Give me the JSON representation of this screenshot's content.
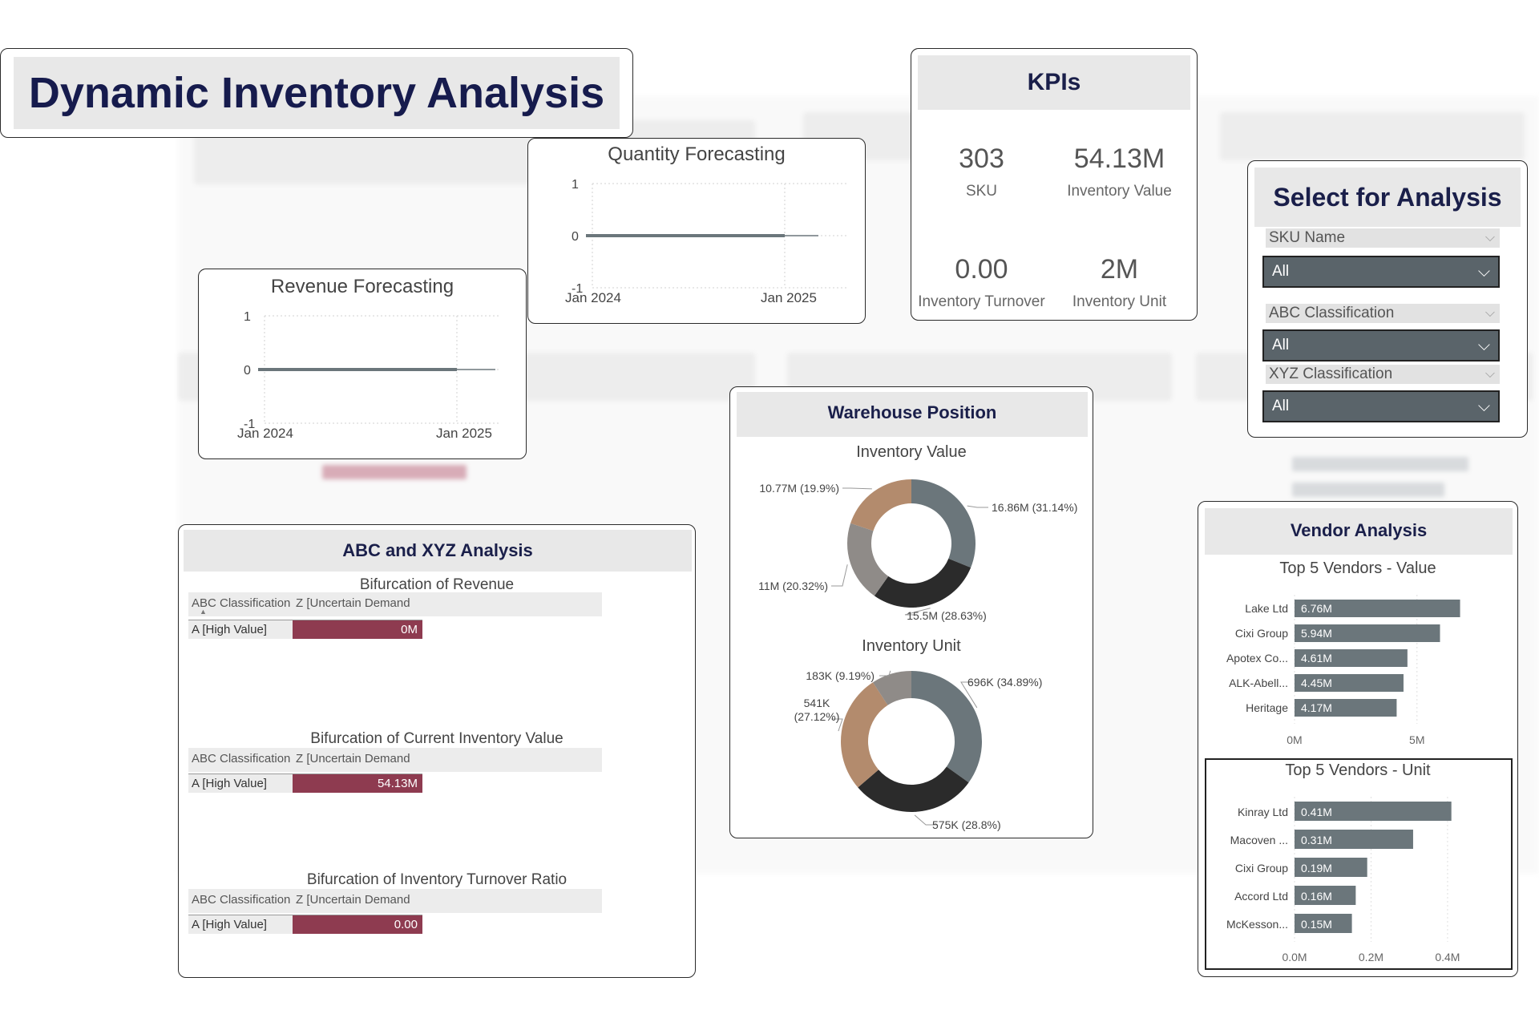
{
  "title": "Dynamic Inventory Analysis",
  "colors": {
    "header_bg": "#e8e8e8",
    "title_text": "#161b4d",
    "slate": "#6b767b",
    "dark": "#2b2b2b",
    "tan": "#b38b6d",
    "gray": "#8f8b88",
    "accent_bar": "#8e3b50",
    "slicer_bg": "#5a646a"
  },
  "kpis": {
    "title": "KPIs",
    "items": [
      {
        "value": "303",
        "label": "SKU"
      },
      {
        "value": "54.13M",
        "label": "Inventory Value"
      },
      {
        "value": "0.00",
        "label": "Inventory Turnover"
      },
      {
        "value": "2M",
        "label": "Inventory Unit"
      }
    ]
  },
  "select": {
    "title": "Select for Analysis",
    "slicers": [
      {
        "label": "SKU Name",
        "value": "All"
      },
      {
        "label": "ABC Classification",
        "value": "All"
      },
      {
        "label": "XYZ Classification",
        "value": "All"
      }
    ]
  },
  "icons": {
    "chevron": "chevron-down-icon"
  },
  "chart_data": [
    {
      "id": "quantity_forecasting",
      "type": "line",
      "title": "Quantity Forecasting",
      "x_ticks": [
        "Jan 2024",
        "Jan 2025"
      ],
      "y_ticks": [
        "1",
        "0",
        "-1"
      ],
      "ylim": [
        -1,
        1
      ],
      "series": [
        {
          "name": "Quantity",
          "values": [
            0,
            0
          ]
        }
      ]
    },
    {
      "id": "revenue_forecasting",
      "type": "line",
      "title": "Revenue Forecasting",
      "x_ticks": [
        "Jan 2024",
        "Jan 2025"
      ],
      "y_ticks": [
        "1",
        "0",
        "-1"
      ],
      "ylim": [
        -1,
        1
      ],
      "series": [
        {
          "name": "Revenue",
          "values": [
            0,
            0
          ]
        }
      ]
    },
    {
      "id": "inventory_value_donut",
      "type": "pie",
      "title": "Inventory Value",
      "slices": [
        {
          "label": "16.86M (31.14%)",
          "value": 31.14,
          "color": "#6b767b"
        },
        {
          "label": "15.5M (28.63%)",
          "value": 28.63,
          "color": "#2b2b2b"
        },
        {
          "label": "11M (20.32%)",
          "value": 20.32,
          "color": "#8f8b88"
        },
        {
          "label": "10.77M (19.9%)",
          "value": 19.9,
          "color": "#b38b6d"
        }
      ]
    },
    {
      "id": "inventory_unit_donut",
      "type": "pie",
      "title": "Inventory Unit",
      "slices": [
        {
          "label": "696K (34.89%)",
          "value": 34.89,
          "color": "#6b767b"
        },
        {
          "label": "575K (28.8%)",
          "value": 28.8,
          "color": "#2b2b2b"
        },
        {
          "label": "541K (27.12%)",
          "value": 27.12,
          "color": "#b38b6d"
        },
        {
          "label": "183K (9.19%)",
          "value": 9.19,
          "color": "#8f8b88"
        }
      ]
    },
    {
      "id": "top5_vendors_value",
      "type": "bar",
      "title": "Top 5 Vendors - Value",
      "categories": [
        "Lake Ltd",
        "Cixi Group",
        "Apotex Co...",
        "ALK-Abell...",
        "Heritage"
      ],
      "values": [
        6.76,
        5.94,
        4.61,
        4.45,
        4.17
      ],
      "data_labels": [
        "6.76M",
        "5.94M",
        "4.61M",
        "4.45M",
        "4.17M"
      ],
      "x_ticks": [
        {
          "value": 0,
          "label": "0M"
        },
        {
          "value": 5,
          "label": "5M"
        }
      ],
      "xlim": [
        0,
        7.2
      ]
    },
    {
      "id": "top5_vendors_unit",
      "type": "bar",
      "title": "Top 5 Vendors - Unit",
      "categories": [
        "Kinray Ltd",
        "Macoven ...",
        "Cixi Group",
        "Accord Ltd",
        "McKesson..."
      ],
      "values": [
        0.41,
        0.31,
        0.19,
        0.16,
        0.15
      ],
      "data_labels": [
        "0.41M",
        "0.31M",
        "0.19M",
        "0.16M",
        "0.15M"
      ],
      "x_ticks": [
        {
          "value": 0,
          "label": "0.0M"
        },
        {
          "value": 0.2,
          "label": "0.2M"
        },
        {
          "value": 0.4,
          "label": "0.4M"
        }
      ],
      "xlim": [
        0,
        0.44
      ]
    }
  ],
  "warehouse": {
    "title": "Warehouse Position"
  },
  "vendor": {
    "title": "Vendor Analysis"
  },
  "abc": {
    "title": "ABC and XYZ Analysis",
    "col1": "ABC Classification",
    "col2": "Z [Uncertain Demand",
    "sort_indicator": "▲",
    "row_label": "A [High Value]",
    "matrices": [
      {
        "title": "Bifurcation of Revenue",
        "value": "0M",
        "fill": 1.0
      },
      {
        "title": "Bifurcation of Current Inventory Value",
        "value": "54.13M",
        "fill": 1.0
      },
      {
        "title": "Bifurcation of Inventory Turnover Ratio",
        "value": "0.00",
        "fill": 1.0
      }
    ]
  }
}
